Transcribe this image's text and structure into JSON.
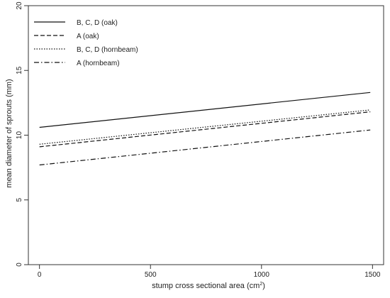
{
  "chart_data": {
    "type": "line",
    "title": "",
    "xlabel": "stump cross sectional area (cm",
    "xlabel_sup": "2",
    "xlabel_suffix": ")",
    "ylabel": "mean diameter of sprouts (mm)",
    "xlim": [
      -50,
      1550
    ],
    "ylim": [
      0,
      20
    ],
    "x_ticks": [
      0,
      500,
      1000,
      1500
    ],
    "x_tick_labels": [
      "0",
      "500",
      "1000",
      "1500"
    ],
    "y_ticks": [
      0,
      5,
      10,
      15,
      20
    ],
    "y_tick_labels": [
      "0",
      "5",
      "10",
      "15",
      "20"
    ],
    "grid": false,
    "legend_position": "top-left",
    "series": [
      {
        "name": "B, C, D (oak)",
        "dash": "solid",
        "x": [
          0,
          1490
        ],
        "y": [
          10.6,
          13.3
        ]
      },
      {
        "name": "A (oak)",
        "dash": "dashed",
        "x": [
          0,
          1490
        ],
        "y": [
          9.1,
          11.8
        ]
      },
      {
        "name": "B, C, D (hornbeam)",
        "dash": "dotted",
        "x": [
          0,
          1490
        ],
        "y": [
          9.3,
          11.95
        ]
      },
      {
        "name": "A (hornbeam)",
        "dash": "dashdot",
        "x": [
          0,
          1490
        ],
        "y": [
          7.7,
          10.4
        ]
      }
    ]
  }
}
